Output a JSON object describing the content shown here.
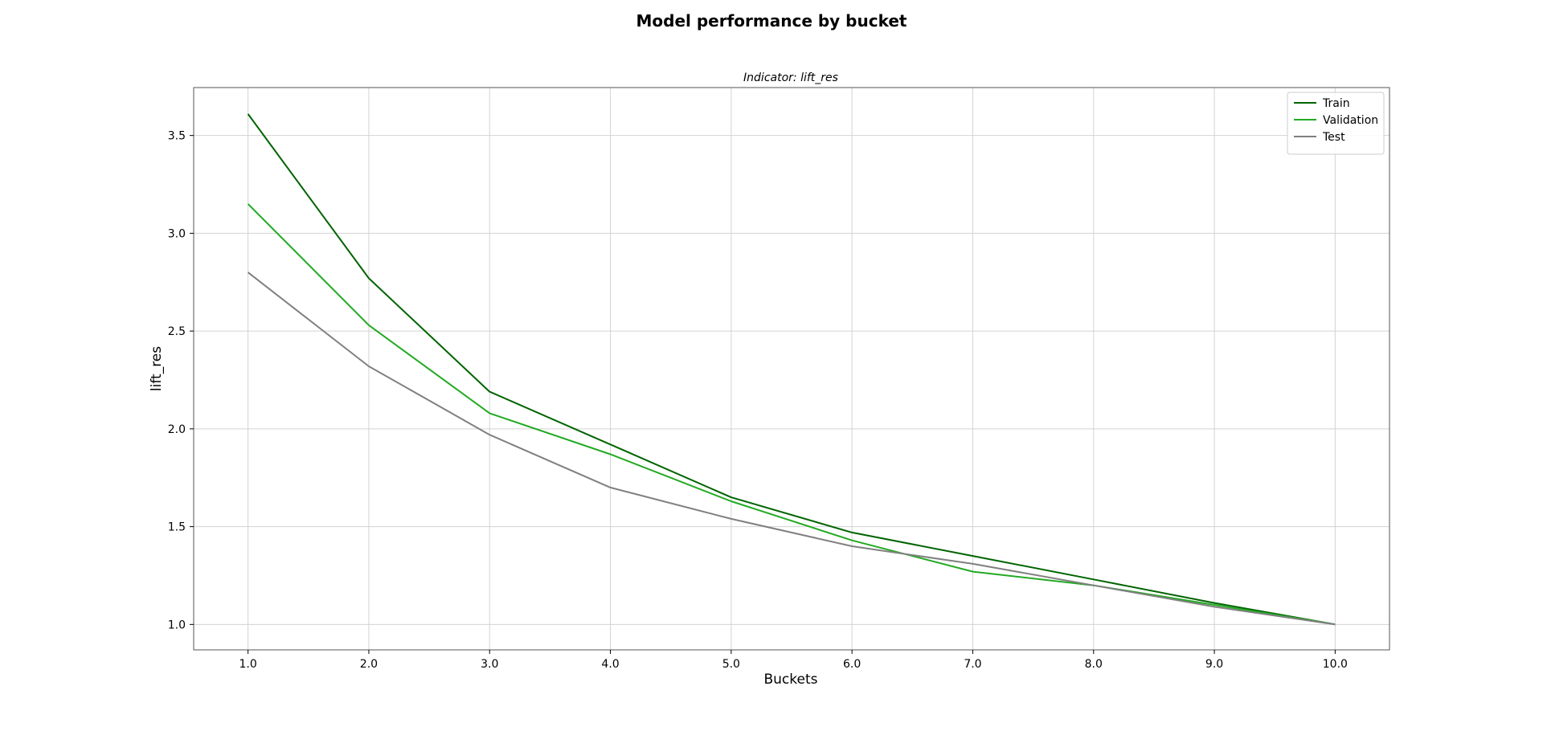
{
  "figure_title": "Model performance by bucket",
  "chart_data": {
    "type": "line",
    "title": "Indicator: lift_res",
    "xlabel": "Buckets",
    "ylabel": "lift_res",
    "x": [
      1.0,
      2.0,
      3.0,
      4.0,
      5.0,
      6.0,
      7.0,
      8.0,
      9.0,
      10.0
    ],
    "x_tick_labels": [
      "1.0",
      "2.0",
      "3.0",
      "4.0",
      "5.0",
      "6.0",
      "7.0",
      "8.0",
      "9.0",
      "10.0"
    ],
    "y_ticks": [
      1.0,
      1.5,
      2.0,
      2.5,
      3.0,
      3.5
    ],
    "y_tick_labels": [
      "1.0",
      "1.5",
      "2.0",
      "2.5",
      "3.0",
      "3.5"
    ],
    "xlim": [
      0.55,
      10.45
    ],
    "ylim": [
      0.87,
      3.745
    ],
    "grid": true,
    "legend_position": "top-right",
    "series": [
      {
        "name": "Train",
        "color": "#006400",
        "values": [
          3.61,
          2.77,
          2.19,
          1.92,
          1.65,
          1.47,
          1.35,
          1.23,
          1.11,
          1.0
        ]
      },
      {
        "name": "Validation",
        "color": "#22aa22",
        "values": [
          3.15,
          2.53,
          2.08,
          1.87,
          1.63,
          1.43,
          1.27,
          1.2,
          1.1,
          1.0
        ]
      },
      {
        "name": "Test",
        "color": "#808080",
        "values": [
          2.8,
          2.32,
          1.97,
          1.7,
          1.54,
          1.4,
          1.31,
          1.2,
          1.09,
          1.0
        ]
      }
    ]
  }
}
